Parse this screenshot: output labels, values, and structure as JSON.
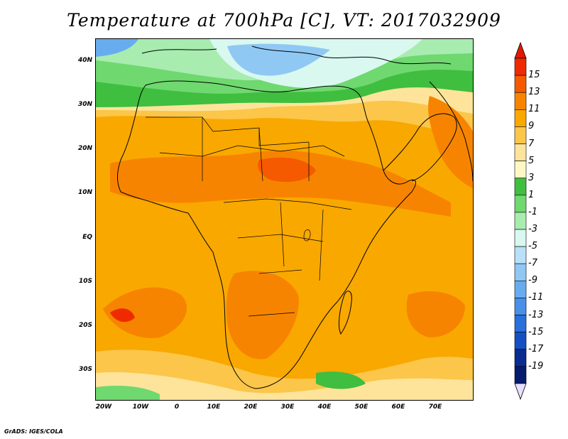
{
  "title": "Temperature at 700hPa [C], VT: 2017032909",
  "credit": "GrADS: IGES/COLA",
  "lat_labels": [
    "40N",
    "30N",
    "20N",
    "10N",
    "EQ",
    "10S",
    "20S",
    "30S"
  ],
  "lon_labels": [
    "20W",
    "10W",
    "0",
    "10E",
    "20E",
    "30E",
    "40E",
    "50E",
    "60E",
    "70E"
  ],
  "colorbar": {
    "labels": [
      "15",
      "13",
      "11",
      "9",
      "7",
      "5",
      "3",
      "1",
      "-1",
      "-3",
      "-5",
      "-7",
      "-9",
      "-11",
      "-13",
      "-15",
      "-17",
      "-19"
    ],
    "colors": [
      "#f02a00",
      "#f55a00",
      "#f78400",
      "#f9a800",
      "#fbc64a",
      "#fde49a",
      "#fff8c4",
      "#3fbe3f",
      "#6fd86f",
      "#a8ecb0",
      "#d8f8f0",
      "#b8e0f8",
      "#90c8f4",
      "#68acf0",
      "#4890e8",
      "#2870dc",
      "#1450c4",
      "#0a2c90",
      "#061a6e"
    ],
    "top_arrow_color": "#e01a00",
    "bottom_arrow_color": "#e8e0ff"
  }
}
